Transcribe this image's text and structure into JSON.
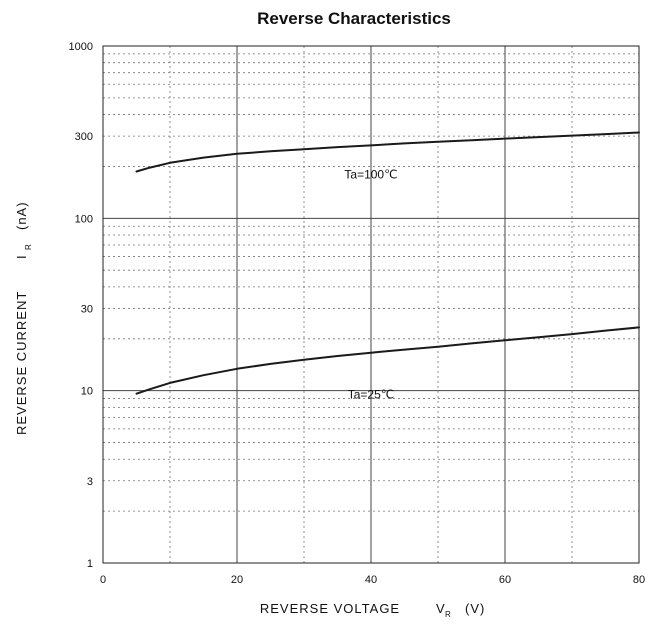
{
  "chart_data": {
    "type": "line",
    "title": "Reverse Characteristics",
    "xlabel": {
      "text": "REVERSE VOLTAGE",
      "symbol": "V",
      "subscript": "R",
      "unit": "(V)"
    },
    "ylabel": {
      "text": "REVERSE CURRENT",
      "symbol": "I",
      "subscript": "R",
      "unit": "(nA)"
    },
    "x_scale": "linear",
    "y_scale": "log",
    "xlim": [
      0,
      80
    ],
    "ylim": [
      1,
      1000
    ],
    "x_ticks": [
      0,
      20,
      40,
      60,
      80
    ],
    "y_ticks": [
      1,
      3,
      10,
      30,
      100,
      300,
      1000
    ],
    "grid": true,
    "series": [
      {
        "name": "Ta=100℃",
        "x": [
          5,
          7,
          10,
          15,
          20,
          25,
          30,
          35,
          40,
          45,
          50,
          55,
          60,
          65,
          70,
          75,
          80
        ],
        "y": [
          187,
          197,
          210,
          225,
          237,
          245,
          252,
          259,
          265,
          272,
          278,
          284,
          290,
          296,
          302,
          308,
          315
        ]
      },
      {
        "name": "Ta=25℃",
        "x": [
          5,
          7,
          10,
          15,
          20,
          25,
          30,
          35,
          40,
          45,
          50,
          55,
          60,
          65,
          70,
          75,
          80
        ],
        "y": [
          9.6,
          10.2,
          11.1,
          12.3,
          13.4,
          14.3,
          15.1,
          15.9,
          16.6,
          17.3,
          18.0,
          18.8,
          19.6,
          20.4,
          21.3,
          22.3,
          23.3
        ]
      }
    ],
    "annotations": [
      {
        "text": "Ta=100℃",
        "x": 40,
        "y": 170
      },
      {
        "text": "Ta=25℃",
        "x": 40,
        "y": 9
      }
    ]
  }
}
